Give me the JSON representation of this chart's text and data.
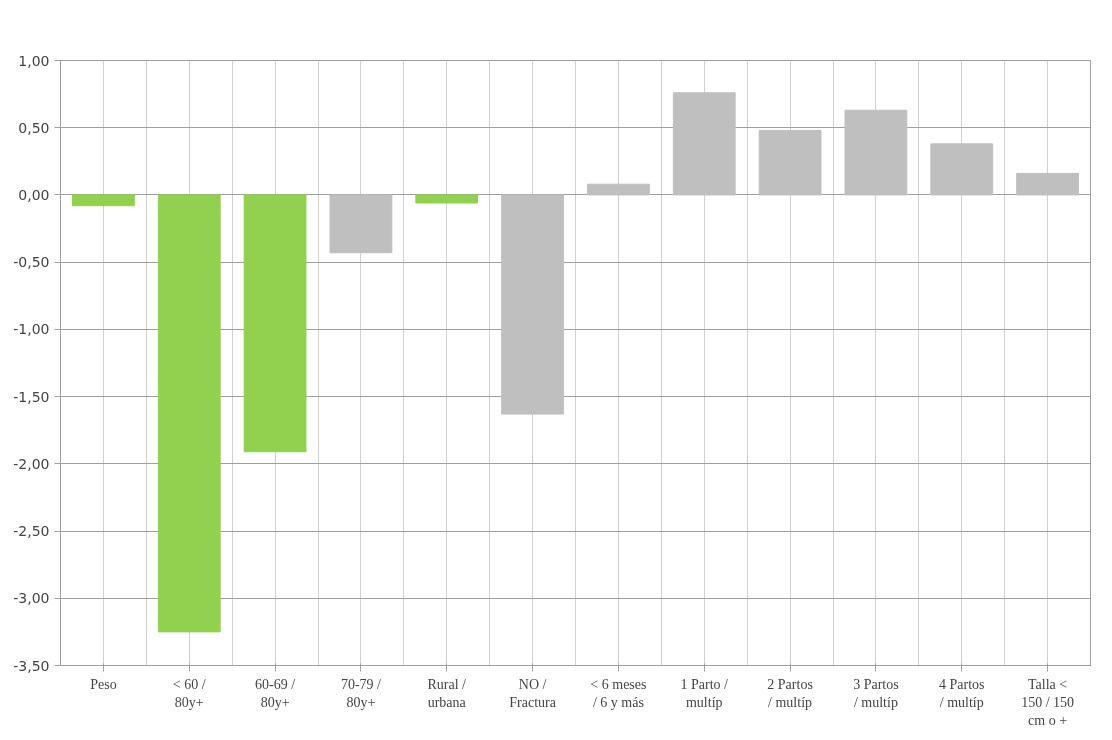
{
  "chart_data": {
    "type": "bar",
    "categories": [
      "Peso",
      "< 60 / 80y+",
      "60-69 / 80y+",
      "70-79 / 80y+",
      "Rural / urbana",
      "NO / Fractura",
      "< 6 meses / 6 y más",
      "1 Parto / multíp",
      "2 Partos / multíp",
      "3 Partos / multíp",
      "4 Partos / multíp",
      "Talla < 150 / 150 cm o +"
    ],
    "values": [
      -0.08,
      -3.25,
      -1.91,
      -0.43,
      -0.06,
      -1.63,
      0.08,
      0.76,
      0.48,
      0.63,
      0.38,
      0.16
    ],
    "colors": [
      "#92d050",
      "#92d050",
      "#92d050",
      "#bfbfbf",
      "#92d050",
      "#bfbfbf",
      "#bfbfbf",
      "#bfbfbf",
      "#bfbfbf",
      "#bfbfbf",
      "#bfbfbf",
      "#bfbfbf"
    ],
    "ylim": [
      -3.5,
      1.0
    ],
    "yticks": [
      {
        "value": -3.5,
        "label": "-3,50"
      },
      {
        "value": -3.0,
        "label": "-3,00"
      },
      {
        "value": -2.5,
        "label": "-2,50"
      },
      {
        "value": -2.0,
        "label": "-2,00"
      },
      {
        "value": -1.5,
        "label": "-1,50"
      },
      {
        "value": -1.0,
        "label": "-1,00"
      },
      {
        "value": -0.5,
        "label": "-0,50"
      },
      {
        "value": 0.0,
        "label": "0,00"
      },
      {
        "value": 0.5,
        "label": "0,50"
      },
      {
        "value": 1.0,
        "label": "1,00"
      }
    ],
    "grid": true
  }
}
